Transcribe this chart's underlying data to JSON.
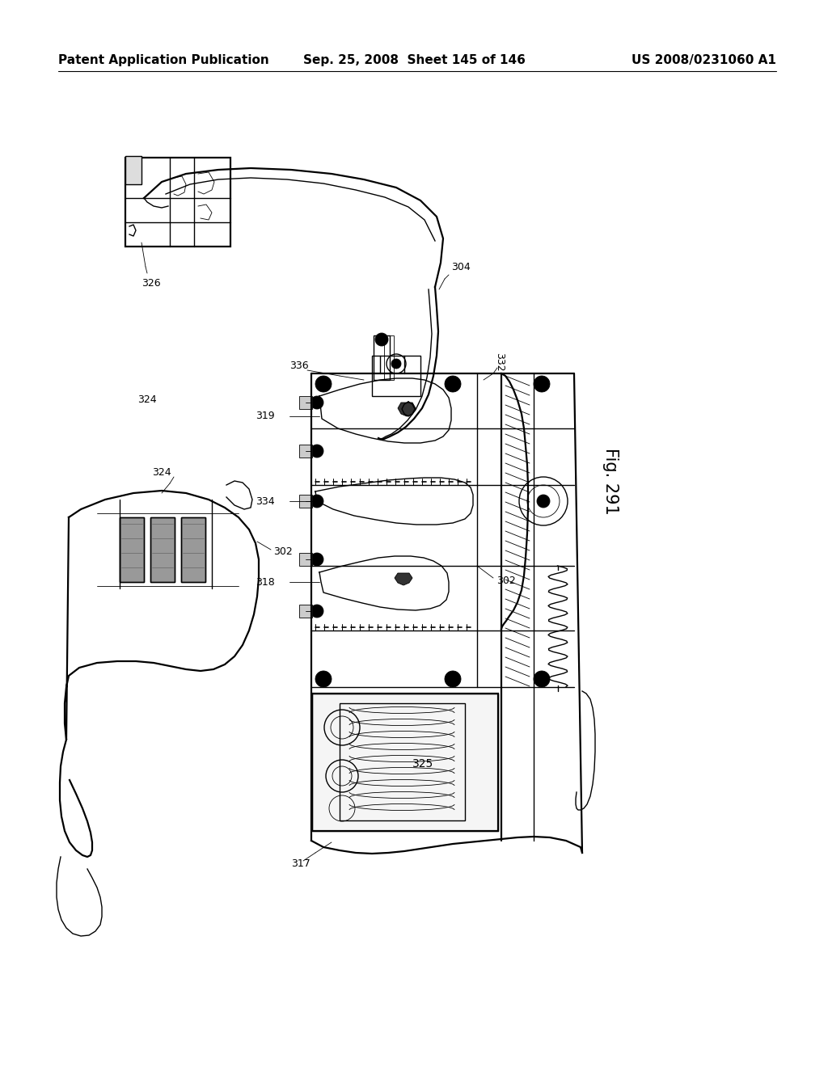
{
  "header_left": "Patent Application Publication",
  "header_center": "Sep. 25, 2008  Sheet 145 of 146",
  "header_right": "US 2008/0231060 A1",
  "fig_label": "Fig. 291",
  "background_color": "#ffffff",
  "line_color": "#000000",
  "page_width": 10.24,
  "page_height": 13.2,
  "header_fontsize": 11,
  "ann_fontsize": 9,
  "fig_label_fontsize": 15,
  "lw_main": 1.0,
  "lw_thin": 0.6,
  "lw_thick": 1.6,
  "lw_ultra": 2.2
}
